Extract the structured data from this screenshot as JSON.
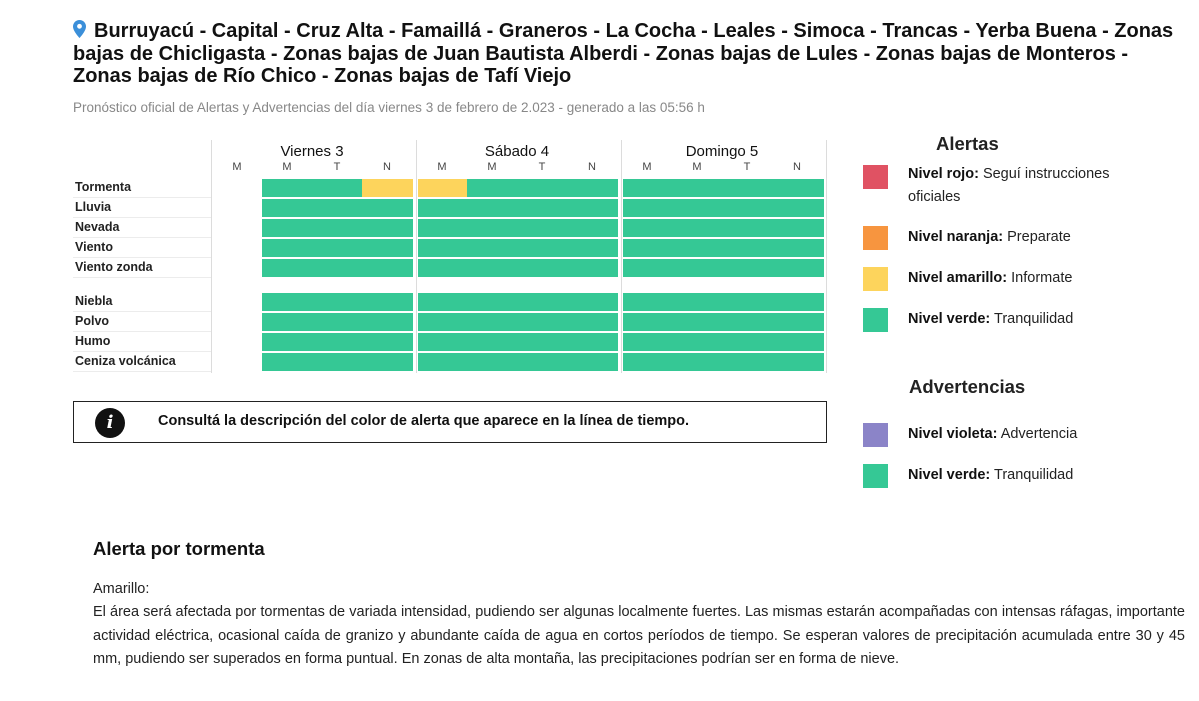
{
  "header": {
    "location": "Burruyacú - Capital - Cruz Alta - Famaillá - Graneros - La Cocha - Leales - Simoca - Trancas - Yerba Buena - Zonas bajas de Chicligasta - Zonas bajas de Juan Bautista Alberdi - Zonas bajas de Lules - Zonas bajas de Monteros - Zonas bajas de Río Chico - Zonas bajas de Tafí Viejo",
    "location_icon": "map-pin-icon",
    "subtitle": "Pronóstico oficial de Alertas y Advertencias del día viernes 3 de febrero de 2.023 - generado a las 05:56 h"
  },
  "colors": {
    "green": "#35c895",
    "yellow": "#fdd45c",
    "orange": "#f7953f",
    "red": "#e05263",
    "violet": "#8b84c8"
  },
  "timeline": {
    "days": [
      {
        "label": "Viernes 3",
        "periods": [
          "M",
          "M",
          "T",
          "N"
        ]
      },
      {
        "label": "Sábado 4",
        "periods": [
          "M",
          "M",
          "T",
          "N"
        ]
      },
      {
        "label": "Domingo 5",
        "periods": [
          "M",
          "M",
          "T",
          "N"
        ]
      }
    ],
    "rows": [
      {
        "label": "Tormenta",
        "levels": [
          null,
          "green",
          "green",
          "yellow",
          "yellow",
          "green",
          "green",
          "green",
          "green",
          "green",
          "green",
          "green"
        ]
      },
      {
        "label": "Lluvia",
        "levels": [
          null,
          "green",
          "green",
          "green",
          "green",
          "green",
          "green",
          "green",
          "green",
          "green",
          "green",
          "green"
        ]
      },
      {
        "label": "Nevada",
        "levels": [
          null,
          "green",
          "green",
          "green",
          "green",
          "green",
          "green",
          "green",
          "green",
          "green",
          "green",
          "green"
        ]
      },
      {
        "label": "Viento",
        "levels": [
          null,
          "green",
          "green",
          "green",
          "green",
          "green",
          "green",
          "green",
          "green",
          "green",
          "green",
          "green"
        ]
      },
      {
        "label": "Viento zonda",
        "levels": [
          null,
          "green",
          "green",
          "green",
          "green",
          "green",
          "green",
          "green",
          "green",
          "green",
          "green",
          "green"
        ]
      },
      {
        "label": "Niebla",
        "levels": [
          null,
          "green",
          "green",
          "green",
          "green",
          "green",
          "green",
          "green",
          "green",
          "green",
          "green",
          "green"
        ]
      },
      {
        "label": "Polvo",
        "levels": [
          null,
          "green",
          "green",
          "green",
          "green",
          "green",
          "green",
          "green",
          "green",
          "green",
          "green",
          "green"
        ]
      },
      {
        "label": "Humo",
        "levels": [
          null,
          "green",
          "green",
          "green",
          "green",
          "green",
          "green",
          "green",
          "green",
          "green",
          "green",
          "green"
        ]
      },
      {
        "label": "Ceniza volcánica",
        "levels": [
          null,
          "green",
          "green",
          "green",
          "green",
          "green",
          "green",
          "green",
          "green",
          "green",
          "green",
          "green"
        ]
      }
    ]
  },
  "info": {
    "icon": "info-icon",
    "icon_glyph": "i",
    "text": "Consultá la descripción del color de alerta que aparece en la línea de tiempo."
  },
  "legend": {
    "alerts_title": "Alertas",
    "alerts": [
      {
        "level": "Nivel rojo:",
        "desc": "Seguí instrucciones oficiales",
        "color": "#e05263"
      },
      {
        "level": "Nivel naranja:",
        "desc": "Preparate",
        "color": "#f7953f"
      },
      {
        "level": "Nivel amarillo:",
        "desc": "Informate",
        "color": "#fdd45c"
      },
      {
        "level": "Nivel verde:",
        "desc": "Tranquilidad",
        "color": "#35c895"
      }
    ],
    "warnings_title": "Advertencias",
    "warnings": [
      {
        "level": "Nivel violeta:",
        "desc": "Advertencia",
        "color": "#8b84c8"
      },
      {
        "level": "Nivel verde:",
        "desc": "Tranquilidad",
        "color": "#35c895"
      }
    ]
  },
  "description": {
    "title": "Alerta por tormenta",
    "level": "Amarillo:",
    "body": "El área será afectada por tormentas de variada intensidad, pudiendo ser algunas localmente fuertes. Las mismas estarán acompañadas con intensas ráfagas, importante actividad eléctrica, ocasional caída de granizo y abundante caída de agua en cortos períodos de tiempo. Se esperan valores de precipitación acumulada entre 30 y 45 mm, pudiendo ser superados en forma puntual. En zonas de alta montaña, las precipitaciones podrían ser en forma de nieve."
  }
}
